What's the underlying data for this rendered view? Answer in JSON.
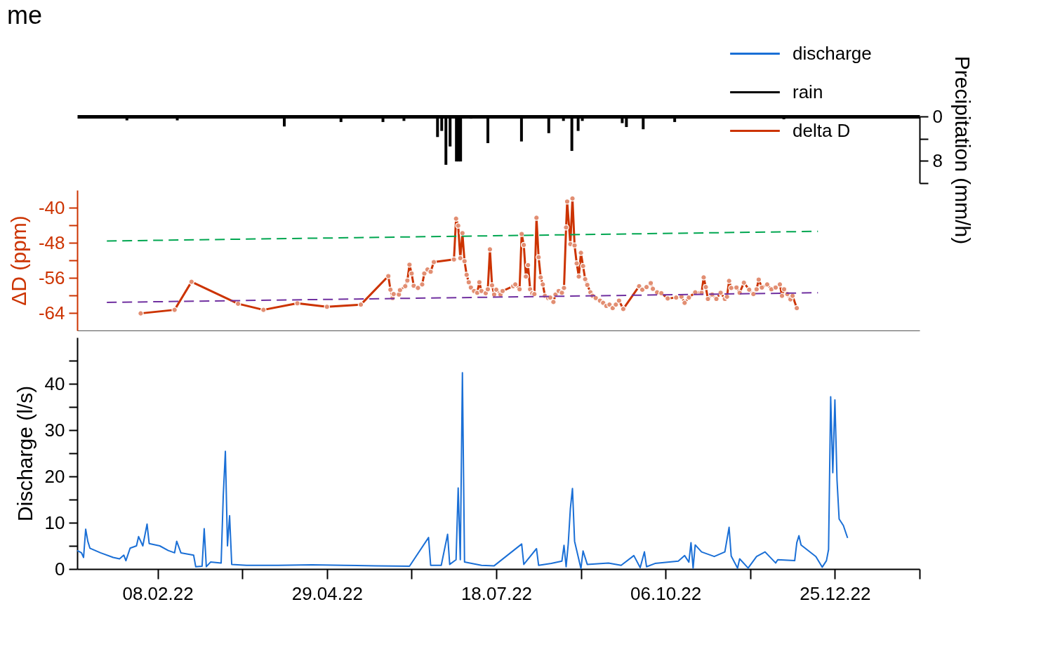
{
  "chart_data": [
    {
      "type": "bar",
      "title": "me",
      "legend": "top right",
      "tick_labels": "y",
      "ylabel": "Precipitation (mm/h)",
      "ylim": [
        12,
        0
      ],
      "yticks": [
        0,
        {
          "value": 4,
          "label": null
        },
        8,
        {
          "value": 12,
          "label": null
        }
      ],
      "xlim": [
        "2022-01-01",
        "2023-02-03"
      ],
      "x": [
        "2022-01-23",
        "2022-02-16",
        "2022-04-08",
        "2022-05-05",
        "2022-05-25",
        "2022-06-04",
        "2022-06-20",
        "2022-06-22",
        "2022-06-24",
        "2022-06-26",
        "2022-06-29",
        "2022-06-30",
        "2022-07-01",
        "2022-07-06",
        "2022-07-14",
        "2022-07-30",
        "2022-08-12",
        "2022-08-19",
        "2022-08-23",
        "2022-08-26",
        "2022-08-28",
        "2022-09-16",
        "2022-09-18",
        "2022-09-26",
        "2022-10-11",
        "2022-12-02"
      ],
      "series": [
        {
          "name": "rain",
          "color": "#000000",
          "values": [
            0.7,
            0.7,
            1.8,
            1.0,
            1.0,
            0.8,
            3.7,
            2.6,
            8.7,
            5.4,
            8.1,
            8.1,
            8.1,
            0.4,
            4.8,
            4.5,
            3.0,
            0.8,
            6.2,
            2.6,
            0.8,
            1.2,
            1.9,
            2.3,
            1.0,
            0.5
          ]
        }
      ]
    },
    {
      "type": "line",
      "tick_labels": "y",
      "ylabel": "ΔD (ppm)",
      "ylim": [
        -68,
        -36
      ],
      "yticks": [
        -40,
        {
          "value": -44,
          "label": null
        },
        -48,
        {
          "value": -52,
          "label": null
        },
        -56,
        {
          "value": -60,
          "label": null
        },
        -64
      ],
      "xlim": [
        "2022-01-01",
        "2023-02-03"
      ],
      "series": [
        {
          "name": "delta D",
          "color": "#cc3300",
          "marker": "circle",
          "x": [
            "2022-01-31",
            "2022-02-16",
            "2022-02-24",
            "2022-03-18",
            "2022-03-30",
            "2022-04-15",
            "2022-04-29",
            "2022-05-15",
            "2022-05-28",
            "2022-05-29",
            "2022-05-30",
            "2022-05-30T12:00",
            "2022-06-02",
            "2022-06-02T12:00",
            "2022-06-05",
            "2022-06-06",
            "2022-06-07",
            "2022-06-08",
            "2022-06-09",
            "2022-06-11",
            "2022-06-13",
            "2022-06-14",
            "2022-06-15T12:00",
            "2022-06-17",
            "2022-06-18T12:00",
            "2022-06-28",
            "2022-06-29",
            "2022-06-30",
            "2022-07-01",
            "2022-07-02",
            "2022-07-03",
            "2022-07-04",
            "2022-07-05",
            "2022-07-06",
            "2022-07-07T12:00",
            "2022-07-09",
            "2022-07-10",
            "2022-07-11",
            "2022-07-13",
            "2022-07-14",
            "2022-07-15",
            "2022-07-16",
            "2022-07-17",
            "2022-07-18",
            "2022-07-20",
            "2022-07-21",
            "2022-07-26",
            "2022-07-27",
            "2022-07-29",
            "2022-07-30",
            "2022-07-31",
            "2022-08-01",
            "2022-08-02",
            "2022-08-03",
            "2022-08-04",
            "2022-08-05",
            "2022-08-06",
            "2022-08-07",
            "2022-08-08",
            "2022-08-09",
            "2022-08-10",
            "2022-08-11T12:00",
            "2022-08-12T12:00",
            "2022-08-14",
            "2022-08-15",
            "2022-08-16T12:00",
            "2022-08-18",
            "2022-08-19",
            "2022-08-20",
            "2022-08-20T12:00",
            "2022-08-22",
            "2022-08-23",
            "2022-08-24",
            "2022-08-25",
            "2022-08-26",
            "2022-08-27",
            "2022-08-28",
            "2022-08-29",
            "2022-08-30",
            "2022-08-31T12:00",
            "2022-09-01T12:00",
            "2022-09-03",
            "2022-09-05",
            "2022-09-06T12:00",
            "2022-09-08",
            "2022-09-09T12:00",
            "2022-09-11",
            "2022-09-12T12:00",
            "2022-09-14",
            "2022-09-16",
            "2022-09-23T12:00",
            "2022-09-25",
            "2022-09-27",
            "2022-09-29",
            "2022-09-30",
            "2022-10-02",
            "2022-10-04",
            "2022-10-07",
            "2022-10-11",
            "2022-10-13T12:00",
            "2022-10-15",
            "2022-10-17",
            "2022-10-20",
            "2022-10-23",
            "2022-10-24",
            "2022-10-25",
            "2022-10-26",
            "2022-10-28",
            "2022-10-30",
            "2022-11-01",
            "2022-11-03",
            "2022-11-04",
            "2022-11-05",
            "2022-11-06",
            "2022-11-08T12:00",
            "2022-11-10",
            "2022-11-12",
            "2022-11-14T12:00",
            "2022-11-16T12:00",
            "2022-11-18",
            "2022-11-19",
            "2022-11-20T12:00",
            "2022-11-23",
            "2022-11-25",
            "2022-11-27",
            "2022-11-29",
            "2022-11-30",
            "2022-12-01",
            "2022-12-02T12:00",
            "2022-12-04",
            "2022-12-05",
            "2022-12-07"
          ],
          "values": [
            -64.1,
            -63.3,
            -56.9,
            -61.9,
            -63.3,
            -61.8,
            -62.6,
            -62.1,
            -55.6,
            -58.7,
            -60.6,
            -59.7,
            -59.8,
            -58.8,
            -57.9,
            -56.6,
            -53.0,
            -55.0,
            -57.8,
            -58.3,
            -57.5,
            -55.0,
            -54.1,
            -54.6,
            -52.4,
            -51.8,
            -42.5,
            -44.1,
            -51.5,
            -45.8,
            -52.2,
            -55.3,
            -57.0,
            -58.2,
            -59.0,
            -59.4,
            -57.0,
            -59.0,
            -59.5,
            -58.6,
            -49.5,
            -57.7,
            -59.8,
            -58.7,
            -59.8,
            -59.0,
            -57.9,
            -57.5,
            -58.6,
            -46.0,
            -48.5,
            -55.7,
            -53.1,
            -58.6,
            -59.5,
            -59.7,
            -42.3,
            -51.3,
            -55.9,
            -57.5,
            -60.1,
            -60.6,
            -60.5,
            -61.5,
            -59.8,
            -59.0,
            -59.4,
            -58.3,
            -44.5,
            -38.6,
            -48.3,
            -37.9,
            -48.6,
            -52.7,
            -55.7,
            -50.3,
            -53.3,
            -56.3,
            -57.6,
            -59.3,
            -60.1,
            -60.6,
            -61.2,
            -61.7,
            -62.4,
            -62.1,
            -62.9,
            -62.1,
            -61.2,
            -63.1,
            -57.9,
            -58.7,
            -58.1,
            -57.2,
            -58.5,
            -59.3,
            -59.5,
            -60.7,
            -60.5,
            -60.3,
            -61.7,
            -60.5,
            -59.3,
            -59.4,
            -55.9,
            -58.1,
            -60.8,
            -59.8,
            -60.8,
            -59.4,
            -60.8,
            -60.3,
            -56.7,
            -58.3,
            -58.2,
            -59.4,
            -57.1,
            -58.7,
            -59.7,
            -58.6,
            -56.4,
            -58.2,
            -57.5,
            -58.6,
            -58.2,
            -57.5,
            -60.1,
            -58.6,
            -59.7,
            -60.9,
            -60.1,
            -62.9
          ]
        },
        {
          "type": "line",
          "color": "#00a650",
          "line_style": "dashed",
          "x": [
            "2022-01-15",
            "2022-12-17"
          ],
          "values": [
            -47.6,
            -45.4
          ]
        },
        {
          "type": "line",
          "color": "#7030a0",
          "line_style": "dashed",
          "x": [
            "2022-01-15",
            "2022-12-17"
          ],
          "values": [
            -61.6,
            -59.4
          ]
        }
      ]
    },
    {
      "type": "line",
      "ylabel": "Discharge (l/s)",
      "ylim": [
        0,
        50
      ],
      "yticks": [
        0,
        {
          "value": 5,
          "label": null
        },
        10,
        {
          "value": 15,
          "label": null
        },
        20,
        {
          "value": 25,
          "label": null
        },
        30,
        {
          "value": 35,
          "label": null
        },
        40,
        {
          "value": 45,
          "label": null
        }
      ],
      "xlim": [
        "2022-01-01",
        "2023-02-03"
      ],
      "xticks": [
        {
          "value": "2022-02-08",
          "label": "08.02.22"
        },
        {
          "value": "2022-03-20",
          "label": null
        },
        {
          "value": "2022-04-29",
          "label": "29.04.22"
        },
        {
          "value": "2022-06-08",
          "label": null
        },
        {
          "value": "2022-07-18",
          "label": "18.07.22"
        },
        {
          "value": "2022-08-27",
          "label": null
        },
        {
          "value": "2022-10-06",
          "label": "06.10.22"
        },
        {
          "value": "2022-11-15",
          "label": null
        },
        {
          "value": "2022-12-25",
          "label": "25.12.22"
        },
        {
          "value": "2023-02-03",
          "label": null
        }
      ],
      "series": [
        {
          "name": "discharge",
          "color": "#1a6fd6",
          "x": [
            "2022-01-01",
            "2022-01-03",
            "2022-01-04",
            "2022-01-05",
            "2022-01-06",
            "2022-01-07",
            "2022-01-12",
            "2022-01-18",
            "2022-01-21",
            "2022-01-23",
            "2022-01-24",
            "2022-01-26",
            "2022-01-29",
            "2022-01-30",
            "2022-02-01",
            "2022-02-03",
            "2022-02-04",
            "2022-02-09",
            "2022-02-13",
            "2022-02-16",
            "2022-02-17",
            "2022-02-19",
            "2022-02-25",
            "2022-02-26",
            "2022-03-01",
            "2022-03-02",
            "2022-03-03",
            "2022-03-05",
            "2022-03-10",
            "2022-03-11",
            "2022-03-12",
            "2022-03-13",
            "2022-03-14",
            "2022-03-15",
            "2022-03-22",
            "2022-04-06",
            "2022-04-22",
            "2022-05-07",
            "2022-05-22",
            "2022-06-07",
            "2022-06-16",
            "2022-06-17",
            "2022-06-22",
            "2022-06-25",
            "2022-06-26",
            "2022-06-29",
            "2022-06-30",
            "2022-07-01",
            "2022-07-02",
            "2022-07-03",
            "2022-07-11",
            "2022-07-17",
            "2022-07-30",
            "2022-07-31",
            "2022-08-06",
            "2022-08-07",
            "2022-08-13",
            "2022-08-18",
            "2022-08-19",
            "2022-08-20",
            "2022-08-21",
            "2022-08-22",
            "2022-08-23",
            "2022-08-24",
            "2022-08-27",
            "2022-08-28",
            "2022-08-30",
            "2022-09-09",
            "2022-09-15",
            "2022-09-21",
            "2022-09-24",
            "2022-09-26",
            "2022-09-27",
            "2022-10-01",
            "2022-10-12",
            "2022-10-15",
            "2022-10-17",
            "2022-10-18",
            "2022-10-19",
            "2022-10-20",
            "2022-10-23",
            "2022-10-29",
            "2022-11-03",
            "2022-11-05",
            "2022-11-06",
            "2022-11-09",
            "2022-11-10",
            "2022-11-14",
            "2022-11-18",
            "2022-11-22",
            "2022-11-27",
            "2022-11-28",
            "2022-12-06",
            "2022-12-07",
            "2022-12-08",
            "2022-12-09",
            "2022-12-16",
            "2022-12-19",
            "2022-12-21",
            "2022-12-22",
            "2022-12-23",
            "2022-12-24",
            "2022-12-25",
            "2022-12-26",
            "2022-12-27",
            "2022-12-29",
            "2022-12-31"
          ],
          "values": [
            4.0,
            3.5,
            2.5,
            8.6,
            6.0,
            4.5,
            3.5,
            2.5,
            2.2,
            3.0,
            1.8,
            4.5,
            5.0,
            7.0,
            5.0,
            9.7,
            5.5,
            5.0,
            4.0,
            3.5,
            6.0,
            3.5,
            3.0,
            0.5,
            0.6,
            8.7,
            0.5,
            1.5,
            1.3,
            15.8,
            25.4,
            5.0,
            11.5,
            1.0,
            0.8,
            0.8,
            0.9,
            0.8,
            0.7,
            0.6,
            6.8,
            0.8,
            0.8,
            7.5,
            1.0,
            2.0,
            17.5,
            2.0,
            42.4,
            1.5,
            0.8,
            0.7,
            5.4,
            1.0,
            4.4,
            0.8,
            1.2,
            1.7,
            5.1,
            0.5,
            5.4,
            13.0,
            17.4,
            6.0,
            0.1,
            3.9,
            1.0,
            1.3,
            0.8,
            2.9,
            0.3,
            3.7,
            0.5,
            1.2,
            1.7,
            2.9,
            1.5,
            5.7,
            0.2,
            5.2,
            3.7,
            2.7,
            3.7,
            9.0,
            2.8,
            0.2,
            2.2,
            0.2,
            2.7,
            3.7,
            1.3,
            2.0,
            1.8,
            5.7,
            7.2,
            5.2,
            2.7,
            0.4,
            1.8,
            4.2,
            37.2,
            20.8,
            36.5,
            19.2,
            10.8,
            9.4,
            6.7
          ]
        }
      ]
    }
  ]
}
